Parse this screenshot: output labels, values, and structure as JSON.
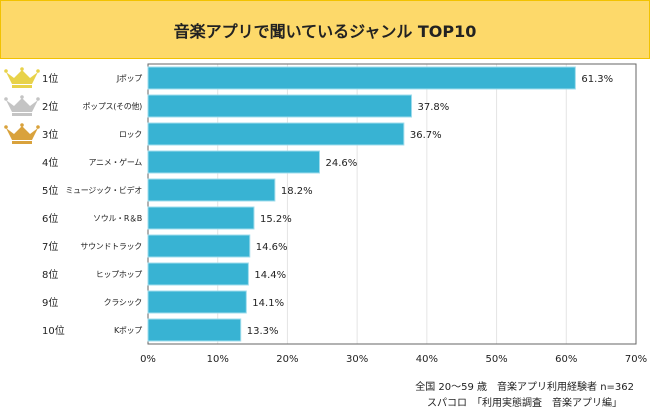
{
  "chart_data": {
    "type": "bar",
    "orientation": "horizontal",
    "title": "音楽アプリで聞いているジャンル TOP10",
    "ranks": [
      "1位",
      "2位",
      "3位",
      "4位",
      "5位",
      "6位",
      "7位",
      "8位",
      "9位",
      "10位"
    ],
    "categories": [
      "Jポップ",
      "ポップス(その他)",
      "ロック",
      "アニメ・ゲーム",
      "ミュージック・ビデオ",
      "ソウル・R＆B",
      "サウンドトラック",
      "ヒップホップ",
      "クラシック",
      "Kポップ"
    ],
    "values": [
      61.3,
      37.8,
      36.7,
      24.6,
      18.2,
      15.2,
      14.6,
      14.4,
      14.1,
      13.3
    ],
    "value_labels": [
      "61.3%",
      "37.8%",
      "36.7%",
      "24.6%",
      "18.2%",
      "15.2%",
      "14.6%",
      "14.4%",
      "14.1%",
      "13.3%"
    ],
    "xlim": [
      0,
      70
    ],
    "xticks": [
      "0%",
      "10%",
      "20%",
      "30%",
      "40%",
      "50%",
      "60%",
      "70%"
    ],
    "grid": true,
    "bar_color": "#38b3d3",
    "crown_colors": [
      "#e8d24a",
      "#c4c4c4",
      "#d9a23c"
    ]
  },
  "footnotes": [
    "全国 20〜59 歳　音楽アプリ利用経験者 n=362",
    "スパコロ　「利用実態調査　音楽アプリ編」"
  ]
}
